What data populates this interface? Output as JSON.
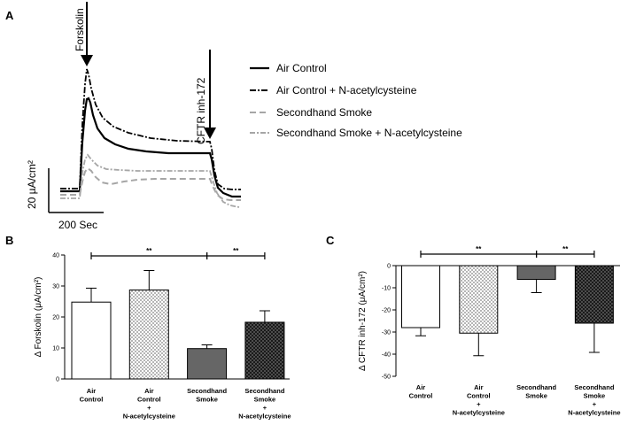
{
  "figure": {
    "panel_a": "A",
    "panel_b": "B",
    "panel_c": "C"
  },
  "chart_data": [
    {
      "type": "line",
      "panel": "A",
      "title": "",
      "annotations": {
        "forskolin": "Forskolin",
        "cftr_inh": "CFTR inh-172"
      },
      "scale_bar": {
        "y_label": "20 µA/cm²",
        "x_label": "200 Sec"
      },
      "series": [
        {
          "name": "Air Control",
          "style": "solid",
          "color": "#000000"
        },
        {
          "name": "Air Control + N-acetylcysteine",
          "style": "dash-dot",
          "color": "#000000"
        },
        {
          "name": "Secondhand Smoke",
          "style": "dashed",
          "color": "#a6a6a6"
        },
        {
          "name": "Secondhand Smoke + N-acetylcysteine",
          "style": "dash-dot",
          "color": "#a6a6a6"
        }
      ]
    },
    {
      "type": "bar",
      "panel": "B",
      "ylabel": "Δ Forskolin (μA/cm²)",
      "ylim": [
        0,
        40
      ],
      "yticks": [
        "0",
        "10",
        "20",
        "30",
        "40"
      ],
      "categories": [
        [
          "Air",
          "Control"
        ],
        [
          "Air",
          "Control",
          "+",
          "N-acetylcysteine"
        ],
        [
          "Secondhand",
          "Smoke"
        ],
        [
          "Secondhand",
          "Smoke",
          "+",
          "N-acetylcysteine"
        ]
      ],
      "values": [
        24.8,
        28.7,
        9.8,
        18.3
      ],
      "errors": [
        4.5,
        6.3,
        1.2,
        3.7
      ],
      "significance": [
        {
          "from": 0,
          "to": 2,
          "label": "**"
        },
        {
          "from": 2,
          "to": 3,
          "label": "**"
        }
      ]
    },
    {
      "type": "bar",
      "panel": "C",
      "ylabel": "Δ CFTR inh-172 (μA/cm²)",
      "ylim": [
        -50,
        0
      ],
      "yticks": [
        "0",
        "-10",
        "-20",
        "-30",
        "-40",
        "-50"
      ],
      "categories": [
        [
          "Air",
          "Control"
        ],
        [
          "Air",
          "Control",
          "+",
          "N-acetylcysteine"
        ],
        [
          "Secondhand",
          "Smoke"
        ],
        [
          "Secondhand",
          "Smoke",
          "+",
          "N-acetylcysteine"
        ]
      ],
      "values": [
        -28.0,
        -30.5,
        -6.2,
        -26.0
      ],
      "errors": [
        3.7,
        10.2,
        6.0,
        13.2
      ],
      "significance": [
        {
          "from": 0,
          "to": 2,
          "label": "**"
        },
        {
          "from": 2,
          "to": 3,
          "label": "**"
        }
      ]
    }
  ],
  "colors": {
    "bar_fills": [
      "#ffffff",
      "pattern-light-check",
      "#666666",
      "pattern-dark-check"
    ],
    "axis": "#000000"
  }
}
